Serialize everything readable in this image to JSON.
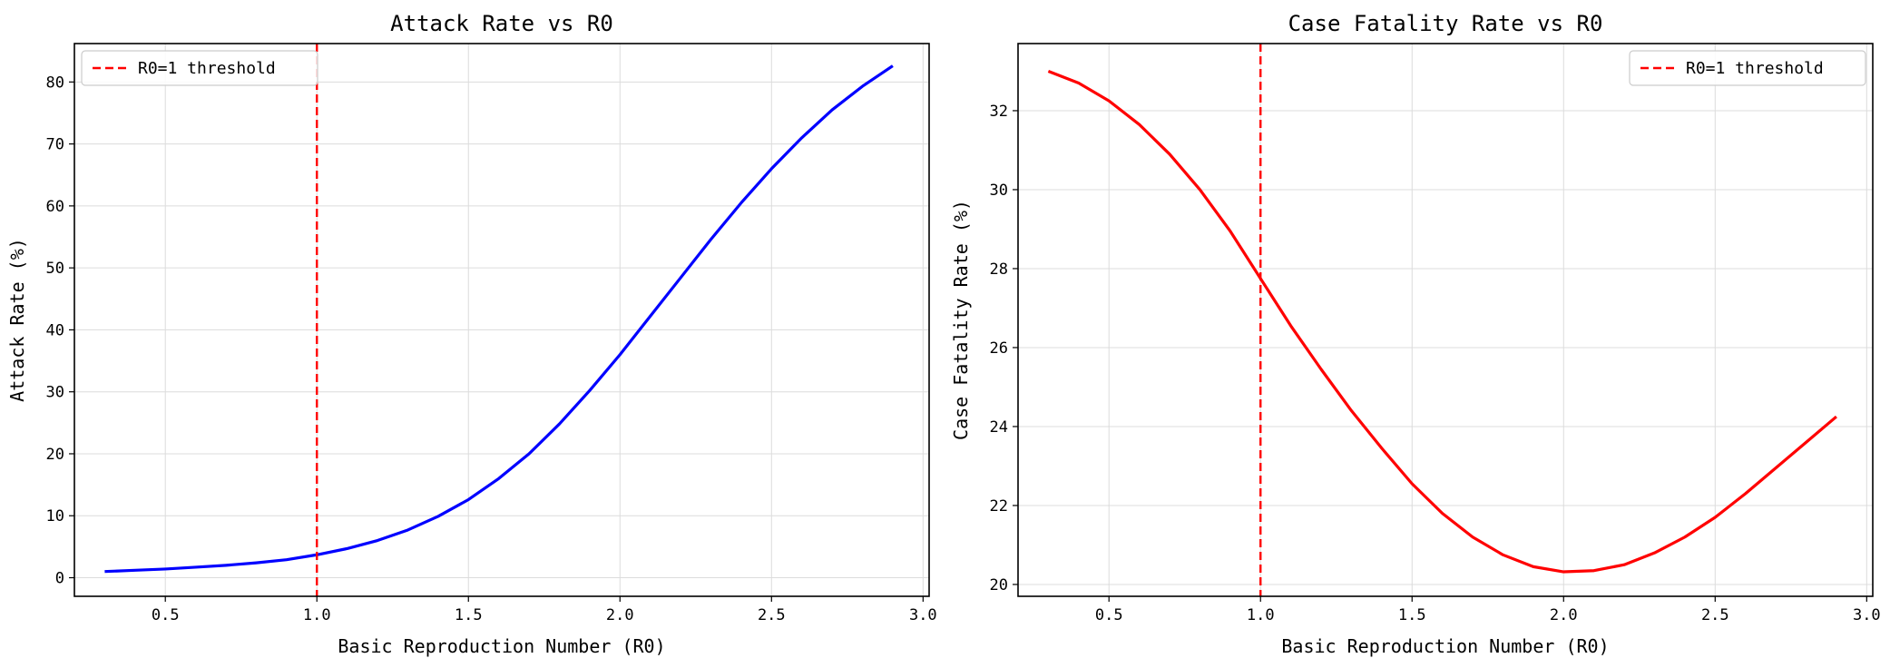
{
  "chart_data": [
    {
      "type": "line",
      "title": "Attack Rate vs R0",
      "xlabel": "Basic Reproduction Number (R0)",
      "ylabel": "Attack Rate (%)",
      "xlim": [
        0.2,
        3.02
      ],
      "ylim": [
        -3,
        86.2
      ],
      "xticks": [
        0.5,
        1.0,
        1.5,
        2.0,
        2.5,
        3.0
      ],
      "xtick_labels": [
        "0.5",
        "1.0",
        "1.5",
        "2.0",
        "2.5",
        "3.0"
      ],
      "yticks": [
        0,
        10,
        20,
        30,
        40,
        50,
        60,
        70,
        80
      ],
      "ytick_labels": [
        "0",
        "10",
        "20",
        "30",
        "40",
        "50",
        "60",
        "70",
        "80"
      ],
      "grid": true,
      "legend": {
        "position": "top-left",
        "entries": [
          "R0=1 threshold"
        ]
      },
      "series": [
        {
          "color": "#0000ff",
          "x": [
            0.3,
            0.4,
            0.5,
            0.6,
            0.7,
            0.8,
            0.9,
            1.0,
            1.1,
            1.2,
            1.3,
            1.4,
            1.5,
            1.6,
            1.7,
            1.8,
            1.9,
            2.0,
            2.1,
            2.2,
            2.3,
            2.4,
            2.5,
            2.6,
            2.7,
            2.8,
            2.9
          ],
          "y": [
            1.0,
            1.2,
            1.4,
            1.7,
            2.0,
            2.4,
            2.9,
            3.7,
            4.7,
            6.0,
            7.7,
            9.9,
            12.6,
            16.0,
            20.0,
            24.8,
            30.2,
            36.0,
            42.2,
            48.4,
            54.6,
            60.5,
            66.0,
            71.0,
            75.5,
            79.3,
            82.6
          ]
        }
      ],
      "vline": {
        "x": 1.0,
        "color": "#ff0000",
        "style": "dashed",
        "label": "R0=1 threshold"
      }
    },
    {
      "type": "line",
      "title": "Case Fatality Rate vs R0",
      "xlabel": "Basic Reproduction Number (R0)",
      "ylabel": "Case Fatality Rate (%)",
      "xlim": [
        0.2,
        3.02
      ],
      "ylim": [
        19.7,
        33.7
      ],
      "xticks": [
        0.5,
        1.0,
        1.5,
        2.0,
        2.5,
        3.0
      ],
      "xtick_labels": [
        "0.5",
        "1.0",
        "1.5",
        "2.0",
        "2.5",
        "3.0"
      ],
      "yticks": [
        20,
        22,
        24,
        26,
        28,
        30,
        32
      ],
      "ytick_labels": [
        "20",
        "22",
        "24",
        "26",
        "28",
        "30",
        "32"
      ],
      "grid": true,
      "legend": {
        "position": "top-right",
        "entries": [
          "R0=1 threshold"
        ]
      },
      "series": [
        {
          "color": "#ff0000",
          "x": [
            0.3,
            0.4,
            0.5,
            0.6,
            0.7,
            0.8,
            0.9,
            1.0,
            1.1,
            1.2,
            1.3,
            1.4,
            1.5,
            1.6,
            1.7,
            1.8,
            1.9,
            2.0,
            2.1,
            2.2,
            2.3,
            2.4,
            2.5,
            2.6,
            2.7,
            2.8,
            2.9
          ],
          "y": [
            33.0,
            32.7,
            32.25,
            31.65,
            30.9,
            30.0,
            28.95,
            27.75,
            26.55,
            25.45,
            24.4,
            23.45,
            22.55,
            21.8,
            21.2,
            20.75,
            20.45,
            20.32,
            20.35,
            20.5,
            20.8,
            21.2,
            21.7,
            22.3,
            22.95,
            23.6,
            24.25
          ]
        }
      ],
      "vline": {
        "x": 1.0,
        "color": "#ff0000",
        "style": "dashed",
        "label": "R0=1 threshold"
      }
    }
  ]
}
